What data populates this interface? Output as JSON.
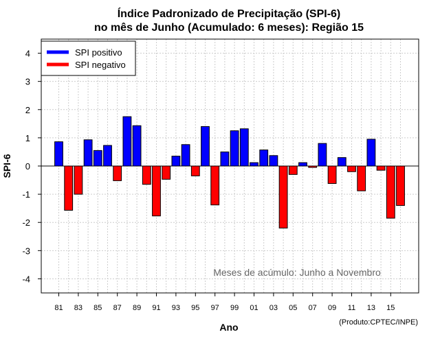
{
  "chart_data": {
    "type": "bar",
    "title": "Índice Padronizado de Precipitação (SPI-6)",
    "subtitle": "no mês de Junho (Acumulado: 6 meses): Região 15",
    "xlabel": "Ano",
    "ylabel": "SPI-6",
    "ylim": [
      -4.5,
      4.5
    ],
    "yticks": [
      -4,
      -3,
      -2,
      -1,
      0,
      1,
      2,
      3,
      4
    ],
    "xtick_labels": [
      "81",
      "83",
      "85",
      "87",
      "89",
      "91",
      "93",
      "95",
      "97",
      "99",
      "01",
      "03",
      "05",
      "07",
      "09",
      "11",
      "13",
      "15"
    ],
    "grid": true,
    "legend_position": "top-left",
    "categories": [
      "1981",
      "1982",
      "1983",
      "1984",
      "1985",
      "1986",
      "1987",
      "1988",
      "1989",
      "1990",
      "1991",
      "1992",
      "1993",
      "1994",
      "1995",
      "1996",
      "1997",
      "1998",
      "1999",
      "2000",
      "2001",
      "2002",
      "2003",
      "2004",
      "2005",
      "2006",
      "2007",
      "2008",
      "2009",
      "2010",
      "2011",
      "2012",
      "2013",
      "2014",
      "2015",
      "2016"
    ],
    "values": [
      0.86,
      -1.57,
      -1.0,
      0.93,
      0.55,
      0.73,
      -0.52,
      1.75,
      1.43,
      -0.65,
      -1.77,
      -0.47,
      0.35,
      0.76,
      -0.35,
      1.4,
      -1.38,
      0.5,
      1.25,
      1.32,
      0.12,
      0.57,
      0.37,
      -2.2,
      -0.3,
      0.12,
      -0.05,
      0.8,
      -0.62,
      0.3,
      -0.2,
      -0.88,
      0.95,
      -0.15,
      -1.85,
      -1.4
    ],
    "series": [
      {
        "name": "SPI positivo",
        "color": "#0000ff"
      },
      {
        "name": "SPI negativo",
        "color": "#ff0000"
      }
    ],
    "annotation": "Meses de acúmulo: Junho a Novembro",
    "credit": "(Produto:CPTEC/INPE)"
  }
}
